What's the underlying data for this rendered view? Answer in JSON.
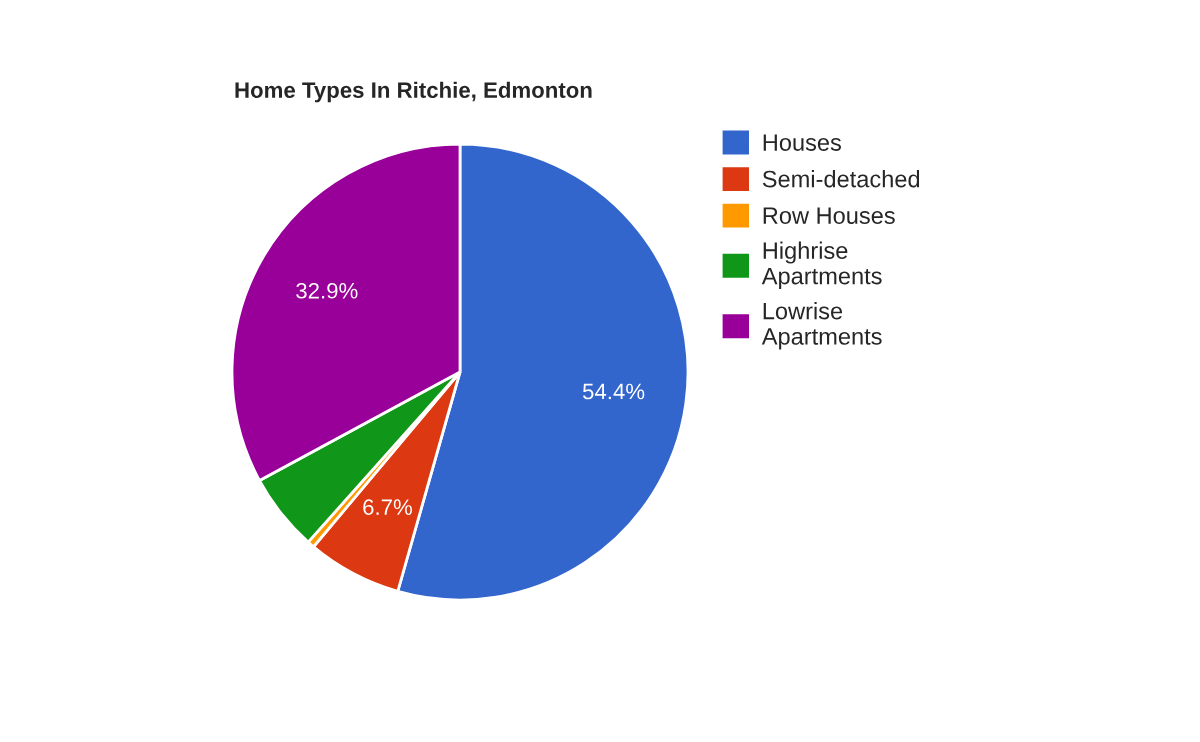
{
  "chart_data": {
    "type": "pie",
    "title": "Home Types In Ritchie, Edmonton",
    "categories": [
      "Houses",
      "Semi-detached",
      "Row Houses",
      "Highrise Apartments",
      "Lowrise Apartments"
    ],
    "values": [
      54.4,
      6.7,
      0.5,
      5.5,
      32.9
    ],
    "value_labels": [
      "54.4%",
      "6.7%",
      null,
      null,
      "32.9%"
    ],
    "colors": [
      "#3366cc",
      "#dc3912",
      "#ff9900",
      "#109618",
      "#990099"
    ],
    "legend": "right"
  }
}
